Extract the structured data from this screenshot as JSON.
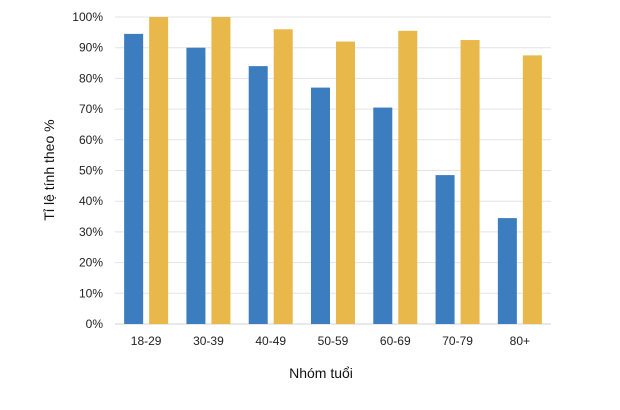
{
  "chart_data": {
    "type": "bar",
    "title": "",
    "xlabel": "Nhóm tuổi",
    "ylabel": "Tỉ lệ tính theo %",
    "categories": [
      "18-29",
      "30-39",
      "40-49",
      "50-59",
      "60-69",
      "70-79",
      "80+"
    ],
    "ylim": [
      0,
      100
    ],
    "yticks": [
      0,
      10,
      20,
      30,
      40,
      50,
      60,
      70,
      80,
      90,
      100
    ],
    "ytick_labels": [
      "0%",
      "10%",
      "20%",
      "30%",
      "40%",
      "50%",
      "60%",
      "70%",
      "80%",
      "90%",
      "100%"
    ],
    "grid": true,
    "legend": "none",
    "series": [
      {
        "color": "#3b7dbf",
        "values": [
          94.5,
          90,
          84,
          77,
          70.5,
          48.5,
          34.5
        ]
      },
      {
        "color": "#e8b84b",
        "values": [
          100,
          100,
          96,
          92,
          95.5,
          92.5,
          87.5
        ]
      }
    ]
  }
}
